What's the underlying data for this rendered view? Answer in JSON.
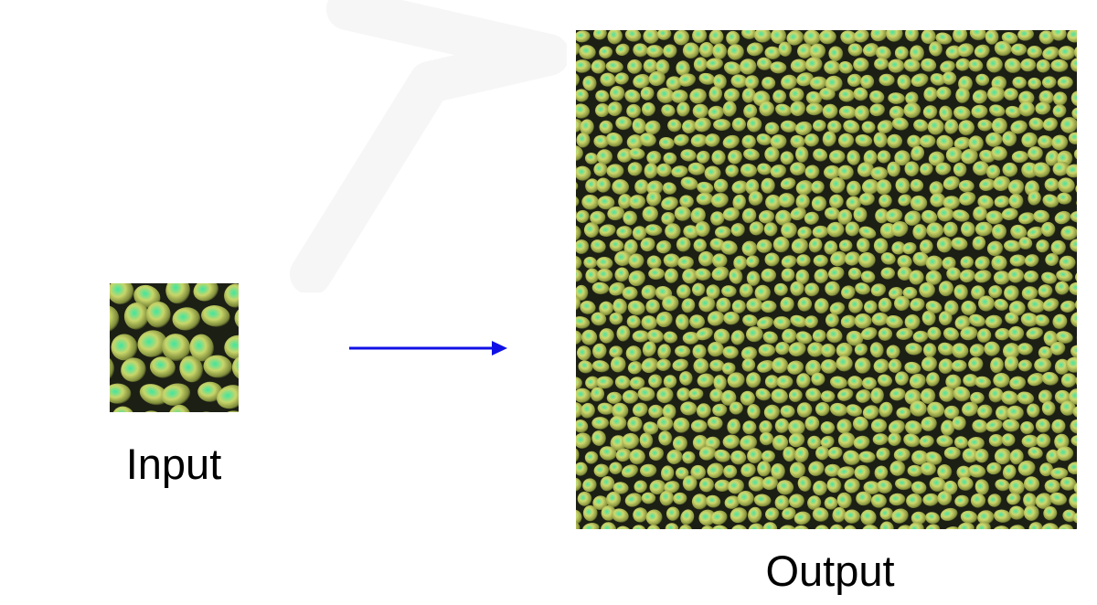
{
  "input": {
    "label": "Input"
  },
  "output": {
    "label": "Output"
  },
  "colors": {
    "arrow": "#1010e6",
    "cell_fill": "#c9d66a",
    "cell_highlight": "#40e6a0",
    "cell_gap": "#1c1f14",
    "watermark": "#f6f6f6"
  }
}
